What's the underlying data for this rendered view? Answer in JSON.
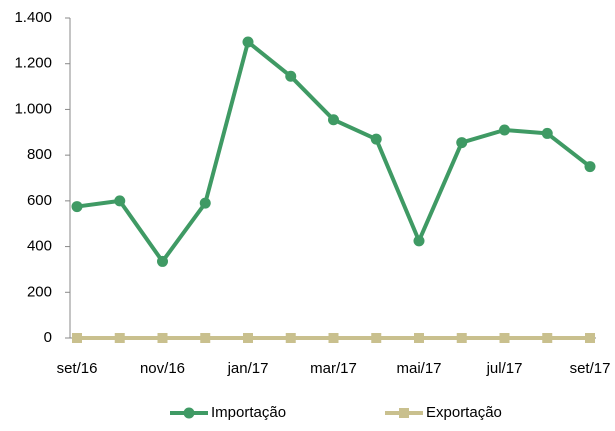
{
  "chart_data": {
    "type": "line",
    "categories": [
      "set/16",
      null,
      "nov/16",
      null,
      "jan/17",
      null,
      "mar/17",
      null,
      "mai/17",
      null,
      "jul/17",
      null,
      "set/17"
    ],
    "series": [
      {
        "name": "Importação",
        "color": "#3f9a64",
        "marker": "circle",
        "values": [
          575,
          600,
          335,
          590,
          1295,
          1145,
          955,
          870,
          425,
          855,
          910,
          895,
          750
        ]
      },
      {
        "name": "Exportação",
        "color": "#c9c08e",
        "marker": "square",
        "values": [
          0,
          0,
          0,
          0,
          0,
          0,
          0,
          0,
          0,
          0,
          0,
          0,
          0
        ]
      }
    ],
    "ylim": [
      0,
      1400
    ],
    "yticks": [
      0,
      200,
      400,
      600,
      800,
      {
        "value": 1000,
        "label": "1.000"
      },
      {
        "value": 1200,
        "label": "1.200"
      },
      {
        "value": 1400,
        "label": "1.400"
      }
    ],
    "legend": "bottom"
  }
}
